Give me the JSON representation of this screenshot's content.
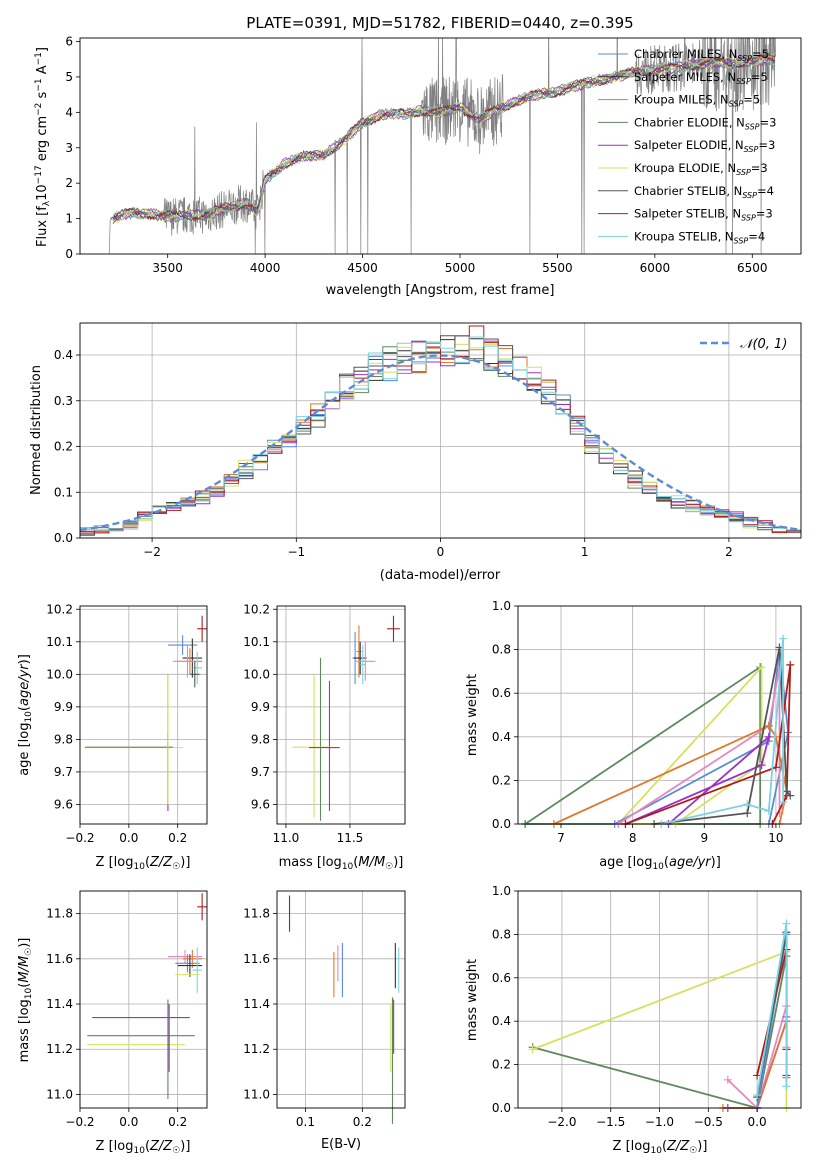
{
  "colors": {
    "obs": "#808080",
    "chabrier_miles": "#5b8bd9",
    "salpeter_miles": "#333333",
    "kroupa_miles": "#e07a2e",
    "chabrier_elodie": "#5f8a5f",
    "salpeter_elodie": "#9b30c8",
    "kroupa_elodie": "#d8e060",
    "chabrier_stelib": "#555555",
    "salpeter_stelib": "#b01c1c",
    "kroupa_stelib": "#7ad3e0",
    "normal": "#5b8bd9",
    "pink": "#e987c0"
  },
  "chart_data": [
    {
      "type": "line",
      "title": "PLATE=0391, MJD=51782, FIBERID=0440, z=0.395",
      "xlabel": "wavelength [Angstrom, rest frame]",
      "ylabel": "Flux [f_λ 10^-17 erg cm^-2 s^-1 A^-1]",
      "xlim": [
        3050,
        6750
      ],
      "ylim": [
        0,
        6.1
      ],
      "xticks": [
        3500,
        4000,
        4500,
        5000,
        5500,
        6000,
        6500
      ],
      "yticks": [
        0,
        1,
        2,
        3,
        4,
        5,
        6
      ],
      "continuum_x": [
        3210,
        3300,
        3400,
        3500,
        3600,
        3700,
        3800,
        3900,
        3960,
        4000,
        4100,
        4200,
        4300,
        4400,
        4500,
        4600,
        4700,
        4800,
        4900,
        5000,
        5100,
        5200,
        5300,
        5400,
        5500,
        5600,
        5700,
        5800,
        5900,
        6000,
        6100,
        6200,
        6300,
        6400,
        6500,
        6600
      ],
      "continuum_y": [
        1.0,
        1.15,
        1.15,
        1.05,
        1.1,
        1.1,
        1.3,
        1.45,
        1.2,
        2.1,
        2.55,
        2.75,
        2.8,
        3.2,
        3.7,
        3.95,
        3.95,
        4.05,
        4.0,
        4.15,
        3.8,
        4.1,
        4.35,
        4.5,
        4.6,
        4.75,
        4.9,
        5.0,
        5.15,
        5.2,
        5.25,
        5.35,
        5.4,
        5.4,
        5.45,
        5.5
      ],
      "series": [
        {
          "name": "Chabrier MILES, N_SSP=5"
        },
        {
          "name": "Salpeter MILES, N_SSP=5"
        },
        {
          "name": "Kroupa MILES, N_SSP=5"
        },
        {
          "name": "Chabrier ELODIE, N_SSP=3"
        },
        {
          "name": "Salpeter ELODIE, N_SSP=3"
        },
        {
          "name": "Kroupa ELODIE, N_SSP=3"
        },
        {
          "name": "Chabrier STELIB, N_SSP=4"
        },
        {
          "name": "Salpeter STELIB, N_SSP=3"
        },
        {
          "name": "Kroupa STELIB, N_SSP=4"
        }
      ],
      "legend_placement": "right",
      "grid": false
    },
    {
      "type": "histogram",
      "xlabel": "(data-model)/error",
      "ylabel": "Normed distribution",
      "xlim": [
        -2.5,
        2.5
      ],
      "ylim": [
        0,
        0.47
      ],
      "xticks": [
        -2,
        -1,
        0,
        1,
        2
      ],
      "yticks": [
        0.0,
        0.1,
        0.2,
        0.3,
        0.4
      ],
      "bin_edges": [
        -2.5,
        -2.4,
        -2.3,
        -2.2,
        -2.1,
        -2.0,
        -1.9,
        -1.8,
        -1.7,
        -1.6,
        -1.5,
        -1.4,
        -1.3,
        -1.2,
        -1.1,
        -1.0,
        -0.9,
        -0.8,
        -0.7,
        -0.6,
        -0.5,
        -0.4,
        -0.3,
        -0.2,
        -0.1,
        0.0,
        0.1,
        0.2,
        0.3,
        0.4,
        0.5,
        0.6,
        0.7,
        0.8,
        0.9,
        1.0,
        1.1,
        1.2,
        1.3,
        1.4,
        1.5,
        1.6,
        1.7,
        1.8,
        1.9,
        2.0,
        2.1,
        2.2,
        2.3,
        2.4,
        2.5
      ],
      "mean_density": [
        0.015,
        0.02,
        0.025,
        0.03,
        0.045,
        0.06,
        0.07,
        0.08,
        0.09,
        0.1,
        0.125,
        0.15,
        0.17,
        0.2,
        0.215,
        0.24,
        0.27,
        0.3,
        0.33,
        0.35,
        0.37,
        0.38,
        0.39,
        0.395,
        0.4,
        0.405,
        0.41,
        0.42,
        0.4,
        0.39,
        0.37,
        0.35,
        0.32,
        0.29,
        0.25,
        0.21,
        0.18,
        0.16,
        0.13,
        0.11,
        0.09,
        0.08,
        0.07,
        0.06,
        0.05,
        0.045,
        0.035,
        0.028,
        0.02,
        0.017
      ],
      "overlay": {
        "name": "N(0,1)",
        "type": "normal",
        "mean": 0,
        "sigma": 1,
        "style": "dashed"
      },
      "legend_label": "𝒩(0, 1)",
      "legend_placement": "top-right",
      "grid": true
    },
    {
      "type": "scatter-errorbar",
      "xlabel": "Z [log10(Z/Z☉)]",
      "ylabel": "age [log10(age/yr)]",
      "xlim": [
        -0.2,
        0.32
      ],
      "ylim": [
        9.54,
        10.21
      ],
      "xticks": [
        -0.2,
        0.0,
        0.2
      ],
      "yticks": [
        9.6,
        9.7,
        9.8,
        9.9,
        10.0,
        10.1,
        10.2
      ],
      "points": [
        {
          "c": "salpeter_stelib",
          "x": 0.3,
          "xe": 0.02,
          "y": 10.14,
          "ye": 0.04
        },
        {
          "c": "chabrier_miles",
          "x": 0.22,
          "xe": 0.06,
          "y": 10.09,
          "ye": 0.03
        },
        {
          "c": "salpeter_miles",
          "x": 0.26,
          "xe": 0.04,
          "y": 10.05,
          "ye": 0.06
        },
        {
          "c": "kroupa_miles",
          "x": 0.25,
          "xe": 0.05,
          "y": 10.04,
          "ye": 0.04
        },
        {
          "c": "pink",
          "x": 0.24,
          "xe": 0.06,
          "y": 10.04,
          "ye": 0.05
        },
        {
          "c": "kroupa_stelib",
          "x": 0.28,
          "xe": 0.02,
          "y": 10.02,
          "ye": 0.05
        },
        {
          "c": "chabrier_stelib",
          "x": 0.27,
          "xe": 0.02,
          "y": 10.0,
          "ye": 0.04
        },
        {
          "c": "kroupa_elodie",
          "x": 0.02,
          "xe": 0.2,
          "y": 9.775,
          "ye": 0.0
        },
        {
          "c": "chabrier_elodie",
          "x": 0.0,
          "xe": 0.18,
          "y": 9.776,
          "ye": 0.0
        },
        {
          "c": "salpeter_elodie",
          "x": 0.16,
          "xe": 0.0,
          "y": 9.7,
          "ye": 0.12
        },
        {
          "c": "chabrier_elodie",
          "x": 0.16,
          "xe": 0.0,
          "y": 9.8,
          "ye": 0.2
        },
        {
          "c": "kroupa_elodie",
          "x": 0.16,
          "xe": 0.0,
          "y": 9.8,
          "ye": 0.2
        }
      ]
    },
    {
      "type": "scatter-errorbar",
      "xlabel": "mass [log10(M/M☉)]",
      "ylabel": "",
      "xlim": [
        10.93,
        11.93
      ],
      "ylim": [
        9.54,
        10.21
      ],
      "xticks": [
        11.0,
        11.5
      ],
      "yticks": [
        9.6,
        9.7,
        9.8,
        9.9,
        10.0,
        10.1,
        10.2
      ],
      "points": [
        {
          "c": "salpeter_stelib",
          "x": 11.84,
          "xe": 0.05,
          "y": 10.14,
          "ye": 0.04
        },
        {
          "c": "kroupa_miles",
          "x": 11.57,
          "xe": 0.02,
          "y": 10.07,
          "ye": 0.08
        },
        {
          "c": "chabrier_miles",
          "x": 11.54,
          "xe": 0.02,
          "y": 10.05,
          "ye": 0.08
        },
        {
          "c": "salpeter_miles",
          "x": 11.58,
          "xe": 0.05,
          "y": 10.05,
          "ye": 0.05
        },
        {
          "c": "pink",
          "x": 11.62,
          "xe": 0.08,
          "y": 10.04,
          "ye": 0.06
        },
        {
          "c": "kroupa_stelib",
          "x": 11.6,
          "xe": 0.02,
          "y": 10.03,
          "ye": 0.06
        },
        {
          "c": "chabrier_elodie",
          "x": 11.27,
          "xe": 0.0,
          "y": 9.8,
          "ye": 0.25
        },
        {
          "c": "kroupa_elodie",
          "x": 11.22,
          "xe": 0.0,
          "y": 9.78,
          "ye": 0.22
        },
        {
          "c": "salpeter_elodie",
          "x": 11.34,
          "xe": 0.0,
          "y": 9.78,
          "ye": 0.2
        },
        {
          "c": "kroupa_elodie",
          "x": 11.2,
          "xe": 0.15,
          "y": 9.776,
          "ye": 0.0
        },
        {
          "c": "salpeter_elodie",
          "x": 11.3,
          "xe": 0.12,
          "y": 9.775,
          "ye": 0.0
        }
      ]
    },
    {
      "type": "line",
      "xlabel": "age [log10(age/yr)]",
      "ylabel": "mass weight",
      "xlim": [
        6.4,
        10.35
      ],
      "ylim": [
        0,
        1
      ],
      "xticks": [
        7,
        8,
        9,
        10
      ],
      "yticks": [
        0.0,
        0.2,
        0.4,
        0.6,
        0.8,
        1.0
      ],
      "series": [
        {
          "c": "chabrier_elodie",
          "x": [
            6.5,
            9.78,
            9.78,
            6.5
          ],
          "y": [
            0.0,
            0.72,
            0.0,
            0.0
          ]
        },
        {
          "c": "kroupa_elodie",
          "x": [
            7.8,
            9.8,
            9.8,
            8.6,
            7.8
          ],
          "y": [
            0.0,
            0.72,
            0.28,
            0.0,
            0.0
          ]
        },
        {
          "c": "chabrier_miles",
          "x": [
            7.75,
            9.9,
            10.05,
            10.17,
            9.9
          ],
          "y": [
            0.0,
            0.38,
            0.8,
            0.42,
            0.0
          ]
        },
        {
          "c": "salpeter_elodie",
          "x": [
            7.9,
            9.8,
            9.9,
            8.5
          ],
          "y": [
            0.0,
            0.27,
            0.4,
            0.0
          ]
        },
        {
          "c": "pink",
          "x": [
            7.8,
            9.9,
            10.05,
            10.05
          ],
          "y": [
            0.0,
            0.45,
            0.72,
            0.05
          ]
        },
        {
          "c": "kroupa_miles",
          "x": [
            6.9,
            9.9,
            10.0,
            10.15,
            10.05
          ],
          "y": [
            0.0,
            0.45,
            0.4,
            0.15,
            0.0
          ]
        },
        {
          "c": "salpeter_stelib",
          "x": [
            7.9,
            10.0,
            10.2,
            10.15,
            9.95
          ],
          "y": [
            0.0,
            0.26,
            0.73,
            0.13,
            0.0
          ]
        },
        {
          "c": "chabrier_stelib",
          "x": [
            8.3,
            9.6,
            10.05,
            10.15,
            10.2
          ],
          "y": [
            0.0,
            0.05,
            0.81,
            0.15,
            0.13
          ]
        },
        {
          "c": "kroupa_stelib",
          "x": [
            8.4,
            9.6,
            9.9,
            10.1,
            10.1
          ],
          "y": [
            0.0,
            0.09,
            0.06,
            0.85,
            0.1
          ]
        }
      ],
      "grid": true
    },
    {
      "type": "scatter-errorbar",
      "xlabel": "Z [log10(Z/Z☉)]",
      "ylabel": "mass [log10(M/M☉)]",
      "xlim": [
        -0.2,
        0.32
      ],
      "ylim": [
        10.94,
        11.9
      ],
      "xticks": [
        -0.2,
        0.0,
        0.2
      ],
      "yticks": [
        11.0,
        11.2,
        11.4,
        11.6,
        11.8
      ],
      "points": [
        {
          "c": "salpeter_stelib",
          "x": 0.3,
          "xe": 0.02,
          "y": 11.83,
          "ye": 0.06
        },
        {
          "c": "pink",
          "x": 0.23,
          "xe": 0.07,
          "y": 11.61,
          "ye": 0.03
        },
        {
          "c": "kroupa_miles",
          "x": 0.26,
          "xe": 0.04,
          "y": 11.6,
          "ye": 0.04
        },
        {
          "c": "chabrier_miles",
          "x": 0.24,
          "xe": 0.05,
          "y": 11.58,
          "ye": 0.04
        },
        {
          "c": "salpeter_miles",
          "x": 0.25,
          "xe": 0.05,
          "y": 11.57,
          "ye": 0.05
        },
        {
          "c": "kroupa_stelib",
          "x": 0.28,
          "xe": 0.02,
          "y": 11.55,
          "ye": 0.1
        },
        {
          "c": "kroupa_elodie",
          "x": 0.24,
          "xe": 0.05,
          "y": 11.53,
          "ye": 0.0
        },
        {
          "c": "salpeter_elodie",
          "x": 0.05,
          "xe": 0.2,
          "y": 11.34,
          "ye": 0.0
        },
        {
          "c": "chabrier_elodie",
          "x": 0.05,
          "xe": 0.22,
          "y": 11.26,
          "ye": 0.0
        },
        {
          "c": "kroupa_elodie",
          "x": 0.03,
          "xe": 0.2,
          "y": 11.22,
          "ye": 0.0
        },
        {
          "c": "chabrier_elodie",
          "x": 0.16,
          "xe": 0.0,
          "y": 11.2,
          "ye": 0.22
        },
        {
          "c": "salpeter_elodie",
          "x": 0.165,
          "xe": 0.0,
          "y": 11.25,
          "ye": 0.15
        }
      ]
    },
    {
      "type": "scatter-errorbar",
      "xlabel": "E(B-V)",
      "ylabel": "",
      "xlim": [
        0.05,
        0.275
      ],
      "ylim": [
        10.94,
        11.9
      ],
      "xticks": [
        0.1,
        0.2
      ],
      "yticks": [
        11.0,
        11.2,
        11.4,
        11.6,
        11.8
      ],
      "points": [
        {
          "c": "salpeter_stelib",
          "x": 0.072,
          "xe": 0.0,
          "y": 11.8,
          "ye": 0.08
        },
        {
          "c": "kroupa_miles",
          "x": 0.15,
          "xe": 0.0,
          "y": 11.53,
          "ye": 0.1
        },
        {
          "c": "pink",
          "x": 0.157,
          "xe": 0.0,
          "y": 11.58,
          "ye": 0.08
        },
        {
          "c": "chabrier_miles",
          "x": 0.165,
          "xe": 0.0,
          "y": 11.55,
          "ye": 0.12
        },
        {
          "c": "salpeter_miles",
          "x": 0.258,
          "xe": 0.0,
          "y": 11.57,
          "ye": 0.1
        },
        {
          "c": "kroupa_stelib",
          "x": 0.264,
          "xe": 0.0,
          "y": 11.55,
          "ye": 0.1
        },
        {
          "c": "chabrier_elodie",
          "x": 0.253,
          "xe": 0.0,
          "y": 11.15,
          "ye": 0.28
        },
        {
          "c": "kroupa_elodie",
          "x": 0.25,
          "xe": 0.0,
          "y": 11.25,
          "ye": 0.15
        },
        {
          "c": "salpeter_elodie",
          "x": 0.255,
          "xe": 0.0,
          "y": 11.3,
          "ye": 0.12
        }
      ]
    },
    {
      "type": "line",
      "xlabel": "Z [log10(Z/Z☉)]",
      "ylabel": "mass weight",
      "xlim": [
        -2.45,
        0.45
      ],
      "ylim": [
        0,
        1
      ],
      "xticks": [
        -2.0,
        -1.5,
        -1.0,
        -0.5,
        0.0
      ],
      "yticks": [
        0.0,
        0.2,
        0.4,
        0.6,
        0.8,
        1.0
      ],
      "series": [
        {
          "c": "chabrier_elodie",
          "x": [
            -2.3,
            0.0,
            0.3
          ],
          "y": [
            0.28,
            0.0,
            0.7
          ]
        },
        {
          "c": "kroupa_elodie",
          "x": [
            -2.3,
            0.3,
            0.3
          ],
          "y": [
            0.27,
            0.72,
            0.0
          ]
        },
        {
          "c": "pink",
          "x": [
            -0.3,
            0.0,
            0.3,
            0.3
          ],
          "y": [
            0.13,
            0.0,
            0.47,
            0.28
          ]
        },
        {
          "c": "salpeter_elodie",
          "x": [
            -0.3,
            0.0,
            0.3
          ],
          "y": [
            0.0,
            0.0,
            0.4
          ]
        },
        {
          "c": "kroupa_miles",
          "x": [
            -0.35,
            0.0,
            0.3,
            0.3
          ],
          "y": [
            0.0,
            0.0,
            0.4,
            0.14
          ]
        },
        {
          "c": "chabrier_miles",
          "x": [
            0.0,
            0.3,
            0.3
          ],
          "y": [
            0.0,
            0.8,
            0.42
          ]
        },
        {
          "c": "salpeter_stelib",
          "x": [
            0.0,
            0.3,
            0.3
          ],
          "y": [
            0.15,
            0.73,
            0.27
          ]
        },
        {
          "c": "chabrier_stelib",
          "x": [
            0.0,
            0.3,
            0.3
          ],
          "y": [
            0.05,
            0.81,
            0.15
          ]
        },
        {
          "c": "kroupa_stelib",
          "x": [
            0.0,
            0.3,
            0.3
          ],
          "y": [
            0.06,
            0.85,
            0.1
          ]
        }
      ],
      "grid": true
    }
  ]
}
